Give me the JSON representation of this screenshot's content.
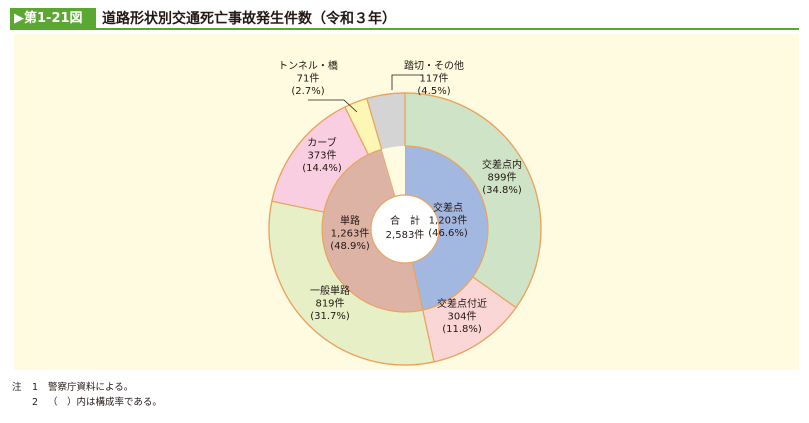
{
  "header": {
    "figure_label": "▶第1-21図",
    "title": "道路形状別交通死亡事故発生件数（令和３年）"
  },
  "chart_data": {
    "type": "pie",
    "style": "nested-donut",
    "center_label": [
      "合　計",
      "2,583件"
    ],
    "inner_ring": [
      {
        "name": "交差点",
        "value": 1203,
        "count_label": "1,203件",
        "pct_label": "(46.6%)",
        "color": "#a3b8e0"
      },
      {
        "name": "単路",
        "value": 1263,
        "count_label": "1,263件",
        "pct_label": "(48.9%)",
        "color": "#ddb3a5"
      },
      {
        "name": "",
        "value": 117,
        "count_label": "",
        "pct_label": "",
        "color": "#fefbe0"
      }
    ],
    "outer_ring": [
      {
        "name": "交差点内",
        "value": 899,
        "count_label": "899件",
        "pct_label": "(34.8%)",
        "color": "#cfe3c6"
      },
      {
        "name": "交差点付近",
        "value": 304,
        "count_label": "304件",
        "pct_label": "(11.8%)",
        "color": "#fad6d6"
      },
      {
        "name": "一般単路",
        "value": 819,
        "count_label": "819件",
        "pct_label": "(31.7%)",
        "color": "#e6efc6"
      },
      {
        "name": "カーブ",
        "value": 373,
        "count_label": "373件",
        "pct_label": "(14.4%)",
        "color": "#f9cee0"
      },
      {
        "name": "トンネル・橋",
        "value": 71,
        "count_label": "71件",
        "pct_label": "(2.7%)",
        "color": "#fdf6b4"
      },
      {
        "name": "踏切・その他",
        "value": 117,
        "count_label": "117件",
        "pct_label": "(4.5%)",
        "color": "#d4d4d4"
      }
    ],
    "stroke_color": "#eba35d"
  },
  "notes": [
    {
      "mark": "注",
      "num": "1",
      "text": "警察庁資料による。"
    },
    {
      "mark": "",
      "num": "2",
      "text": "（　）内は構成率である。"
    }
  ]
}
